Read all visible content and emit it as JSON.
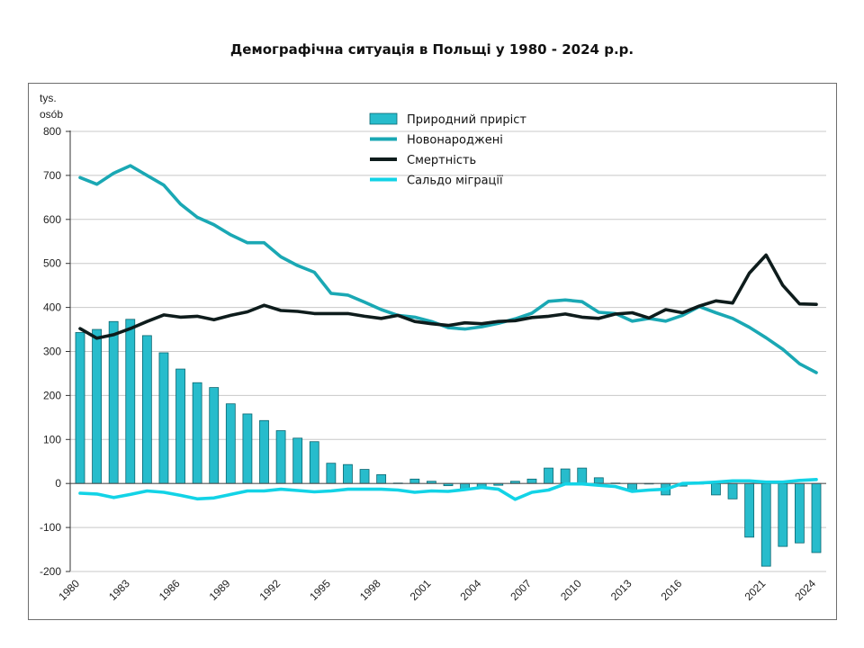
{
  "chart_data": {
    "type": "bar+line",
    "title": "Демографічна ситуація в Польщі у 1980 - 2024 р.р.",
    "ylabel_line1": "tys.",
    "ylabel_line2": "osób",
    "ylim": [
      -200,
      800
    ],
    "yticks": [
      800,
      700,
      600,
      500,
      400,
      300,
      200,
      100,
      0,
      -100,
      -200
    ],
    "xlim": [
      1980,
      2024
    ],
    "xticks": [
      1980,
      1983,
      1986,
      1989,
      1992,
      1995,
      1998,
      2001,
      2004,
      2007,
      2010,
      2013,
      2016,
      2021,
      2024
    ],
    "legend_position": "top-center",
    "grid": "horizontal",
    "series": [
      {
        "name": "Природний приріст",
        "kind": "bar",
        "color": "#27bccc",
        "x": [
          1980,
          1981,
          1982,
          1983,
          1984,
          1985,
          1986,
          1987,
          1988,
          1989,
          1990,
          1991,
          1992,
          1993,
          1994,
          1995,
          1996,
          1997,
          1998,
          1999,
          2000,
          2001,
          2002,
          2003,
          2004,
          2005,
          2006,
          2007,
          2008,
          2009,
          2010,
          2011,
          2012,
          2013,
          2014,
          2015,
          2016,
          2017,
          2018,
          2019,
          2020,
          2021,
          2022,
          2023,
          2024
        ],
        "values": [
          343,
          350,
          368,
          373,
          336,
          297,
          260,
          229,
          218,
          181,
          158,
          143,
          120,
          103,
          95,
          46,
          43,
          32,
          20,
          1,
          10,
          5,
          -5,
          -14,
          -8,
          -4,
          5,
          10,
          35,
          33,
          35,
          13,
          1,
          -17,
          -1,
          -26,
          -6,
          0,
          -26,
          -35,
          -122,
          -188,
          -143,
          -135,
          -157
        ]
      },
      {
        "name": "Новонароджені",
        "kind": "line",
        "color": "#1aa8b4",
        "x": [
          1980,
          1981,
          1982,
          1983,
          1984,
          1985,
          1986,
          1987,
          1988,
          1989,
          1990,
          1991,
          1992,
          1993,
          1994,
          1995,
          1996,
          1997,
          1998,
          1999,
          2000,
          2001,
          2002,
          2003,
          2004,
          2005,
          2006,
          2007,
          2008,
          2009,
          2010,
          2011,
          2012,
          2013,
          2014,
          2015,
          2016,
          2017,
          2018,
          2019,
          2020,
          2021,
          2022,
          2023,
          2024
        ],
        "values": [
          695,
          680,
          705,
          722,
          700,
          678,
          635,
          605,
          588,
          565,
          547,
          547,
          515,
          495,
          480,
          432,
          428,
          412,
          395,
          382,
          378,
          368,
          354,
          351,
          356,
          364,
          374,
          387,
          414,
          417,
          413,
          389,
          386,
          369,
          375,
          369,
          382,
          402,
          388,
          375,
          355,
          331,
          305,
          272,
          252
        ]
      },
      {
        "name": "Смертність",
        "kind": "line",
        "color": "#0e1c1c",
        "x": [
          1980,
          1981,
          1982,
          1983,
          1984,
          1985,
          1986,
          1987,
          1988,
          1989,
          1990,
          1991,
          1992,
          1993,
          1994,
          1995,
          1996,
          1997,
          1998,
          1999,
          2000,
          2001,
          2002,
          2003,
          2004,
          2005,
          2006,
          2007,
          2008,
          2009,
          2010,
          2011,
          2012,
          2013,
          2014,
          2015,
          2016,
          2017,
          2018,
          2019,
          2020,
          2021,
          2022,
          2023,
          2024
        ],
        "values": [
          352,
          330,
          338,
          352,
          368,
          383,
          378,
          380,
          372,
          382,
          390,
          405,
          393,
          391,
          386,
          386,
          386,
          380,
          375,
          382,
          368,
          363,
          359,
          365,
          363,
          368,
          370,
          377,
          380,
          385,
          378,
          375,
          385,
          388,
          376,
          395,
          388,
          403,
          415,
          410,
          478,
          519,
          450,
          408,
          407
        ]
      },
      {
        "name": "Сальдо міграції",
        "kind": "line",
        "color": "#12d3e6",
        "x": [
          1980,
          1981,
          1982,
          1983,
          1984,
          1985,
          1986,
          1987,
          1988,
          1989,
          1990,
          1991,
          1992,
          1993,
          1994,
          1995,
          1996,
          1997,
          1998,
          1999,
          2000,
          2001,
          2002,
          2003,
          2004,
          2005,
          2006,
          2007,
          2008,
          2009,
          2010,
          2011,
          2012,
          2013,
          2014,
          2015,
          2016,
          2017,
          2018,
          2019,
          2020,
          2021,
          2022,
          2023,
          2024
        ],
        "values": [
          -22,
          -24,
          -32,
          -25,
          -17,
          -20,
          -27,
          -35,
          -33,
          -25,
          -17,
          -17,
          -13,
          -16,
          -19,
          -17,
          -13,
          -13,
          -13,
          -15,
          -20,
          -17,
          -18,
          -14,
          -9,
          -13,
          -36,
          -20,
          -15,
          -1,
          -1,
          -4,
          -7,
          -18,
          -15,
          -13,
          0,
          1,
          3,
          6,
          6,
          3,
          3,
          7,
          9
        ]
      }
    ]
  }
}
